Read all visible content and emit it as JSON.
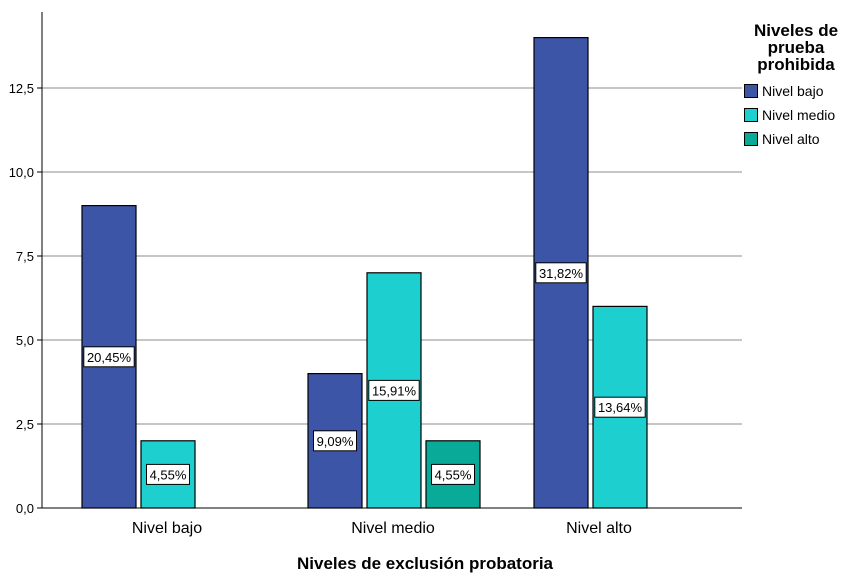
{
  "chart_data": {
    "type": "bar",
    "title": "",
    "xlabel": "Niveles de exclusión probatoria",
    "ylabel": "",
    "ylim": [
      0,
      14.2
    ],
    "yticks": [
      "0,0",
      "2,5",
      "5,0",
      "7,5",
      "10,0",
      "12,5"
    ],
    "ytick_values": [
      0,
      2.5,
      5,
      7.5,
      10,
      12.5
    ],
    "grid": true,
    "legend_title": "Niveles de prueba prohibida",
    "legend_position": "top-right",
    "categories": [
      "Nivel bajo",
      "Nivel medio",
      "Nivel alto"
    ],
    "series": [
      {
        "name": "Nivel bajo",
        "color": "#3d55a6",
        "values": [
          9,
          4,
          14
        ],
        "labels": [
          "20,45%",
          "9,09%",
          "31,82%"
        ]
      },
      {
        "name": "Nivel medio",
        "color": "#1ecfcf",
        "values": [
          2,
          7,
          6
        ],
        "labels": [
          "4,55%",
          "15,91%",
          "13,64%"
        ]
      },
      {
        "name": "Nivel alto",
        "color": "#0aaa98",
        "values": [
          0,
          2,
          0
        ],
        "labels": [
          "",
          "4,55%",
          ""
        ]
      }
    ]
  }
}
